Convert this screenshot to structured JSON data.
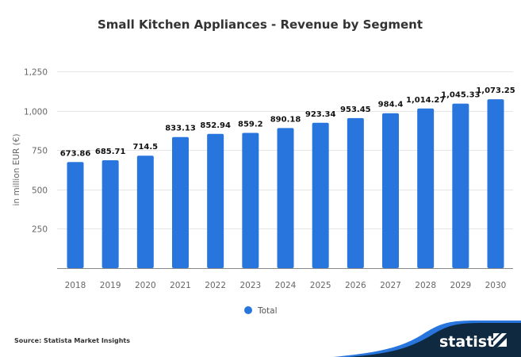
{
  "chart_data": {
    "type": "bar",
    "title": "Small Kitchen Appliances - Revenue by Segment",
    "xlabel": "",
    "ylabel": "in million EUR (€)",
    "ylim": [
      0,
      1250
    ],
    "yticks": [
      250,
      500,
      750,
      1000,
      1250
    ],
    "ytick_labels": [
      "250",
      "500",
      "750",
      "1,000",
      "1,250"
    ],
    "grid": true,
    "categories": [
      "2018",
      "2019",
      "2020",
      "2021",
      "2022",
      "2023",
      "2024",
      "2025",
      "2026",
      "2027",
      "2028",
      "2029",
      "2030"
    ],
    "series": [
      {
        "name": "Total",
        "color": "#2876dd",
        "values": [
          673.86,
          685.71,
          714.5,
          833.13,
          852.94,
          859.2,
          890.18,
          923.34,
          953.45,
          984.4,
          1014.27,
          1045.33,
          1073.25
        ],
        "labels": [
          "673.86",
          "685.71",
          "714.5",
          "833.13",
          "852.94",
          "859.2",
          "890.18",
          "923.34",
          "953.45",
          "984.4",
          "1,014.27",
          "1,045.33",
          "1,073.25"
        ]
      }
    ],
    "legend": {
      "position": "bottom-center",
      "entries": [
        "Total"
      ]
    }
  },
  "footer": {
    "source": "Source: Statista Market Insights",
    "brand": "statista",
    "brand_dark_color": "#0f2a40",
    "brand_accent_color": "#2876dd"
  }
}
